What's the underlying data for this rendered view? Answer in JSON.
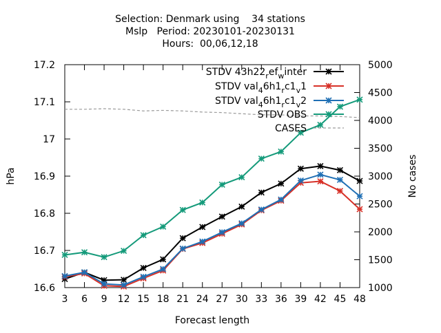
{
  "title_lines": [
    "Selection: Denmark using    34 stations",
    "Mslp   Period: 20230101-20230131",
    "Hours:  00,06,12,18"
  ],
  "chart_data": {
    "type": "line",
    "xlabel": "Forecast length",
    "ylabel": "hPa",
    "y2label": "No cases",
    "xlim": [
      3,
      48
    ],
    "ylim": [
      16.6,
      17.2
    ],
    "y2lim": [
      1000,
      5000
    ],
    "x": [
      3,
      6,
      9,
      12,
      15,
      18,
      21,
      24,
      27,
      30,
      33,
      36,
      39,
      42,
      45,
      48
    ],
    "xticks": [
      "3",
      "6",
      "9",
      "12",
      "15",
      "18",
      "21",
      "24",
      "27",
      "30",
      "33",
      "36",
      "39",
      "42",
      "45",
      "48"
    ],
    "yticks": [
      "16.6",
      "16.7",
      "16.8",
      "16.9",
      "17",
      "17.1",
      "17.2"
    ],
    "y2ticks": [
      "1000",
      "1500",
      "2000",
      "2500",
      "3000",
      "3500",
      "4000",
      "4500",
      "5000"
    ],
    "grid": false,
    "legend_position": "top-right",
    "series": [
      {
        "name": "STDV 43h22_ref_winter",
        "legend_base": "STDV 43h22",
        "legend_sub1": "r",
        "legend_mid": "ef",
        "legend_sub2": "w",
        "legend_end": "inter",
        "color": "#000000",
        "axis": "y",
        "values": [
          16.623,
          16.641,
          16.62,
          16.621,
          16.653,
          16.676,
          16.733,
          16.763,
          16.791,
          16.818,
          16.856,
          16.88,
          16.92,
          16.927,
          16.916,
          16.887
        ]
      },
      {
        "name": "STDV val_46h1_c1_v1",
        "legend_base": "STDV val",
        "legend_sub1": "4",
        "legend_mid": "6h1",
        "legend_sub2": "r",
        "legend_mid2": "c1",
        "legend_sub3": "v",
        "legend_end": "1",
        "color": "#d73027",
        "axis": "y",
        "values": [
          16.629,
          16.638,
          16.605,
          16.603,
          16.625,
          16.646,
          16.704,
          16.72,
          16.745,
          16.77,
          16.808,
          16.834,
          16.882,
          16.886,
          16.86,
          16.811
        ]
      },
      {
        "name": "STDV val_46h1_c1_v2",
        "legend_base": "STDV val",
        "legend_sub1": "4",
        "legend_mid": "6h1",
        "legend_sub2": "r",
        "legend_mid2": "c1",
        "legend_sub3": "v",
        "legend_end": "2",
        "color": "#1f6fb4",
        "axis": "y",
        "values": [
          16.631,
          16.641,
          16.61,
          16.607,
          16.629,
          16.65,
          16.705,
          16.724,
          16.749,
          16.773,
          16.81,
          16.837,
          16.888,
          16.904,
          16.89,
          16.846
        ]
      },
      {
        "name": "STDV OBS",
        "color": "#149a7a",
        "axis": "y",
        "values": [
          16.688,
          16.695,
          16.682,
          16.699,
          16.741,
          16.764,
          16.809,
          16.829,
          16.877,
          16.897,
          16.947,
          16.966,
          17.017,
          17.038,
          17.087,
          17.106
        ]
      },
      {
        "name": "CASES",
        "color": "#9a9a9a",
        "axis": "y2",
        "dashed": true,
        "values": [
          4200,
          4200,
          4210,
          4200,
          4170,
          4180,
          4170,
          4150,
          4140,
          4120,
          4100,
          4100,
          4080,
          4080,
          4070,
          4050
        ]
      }
    ]
  }
}
